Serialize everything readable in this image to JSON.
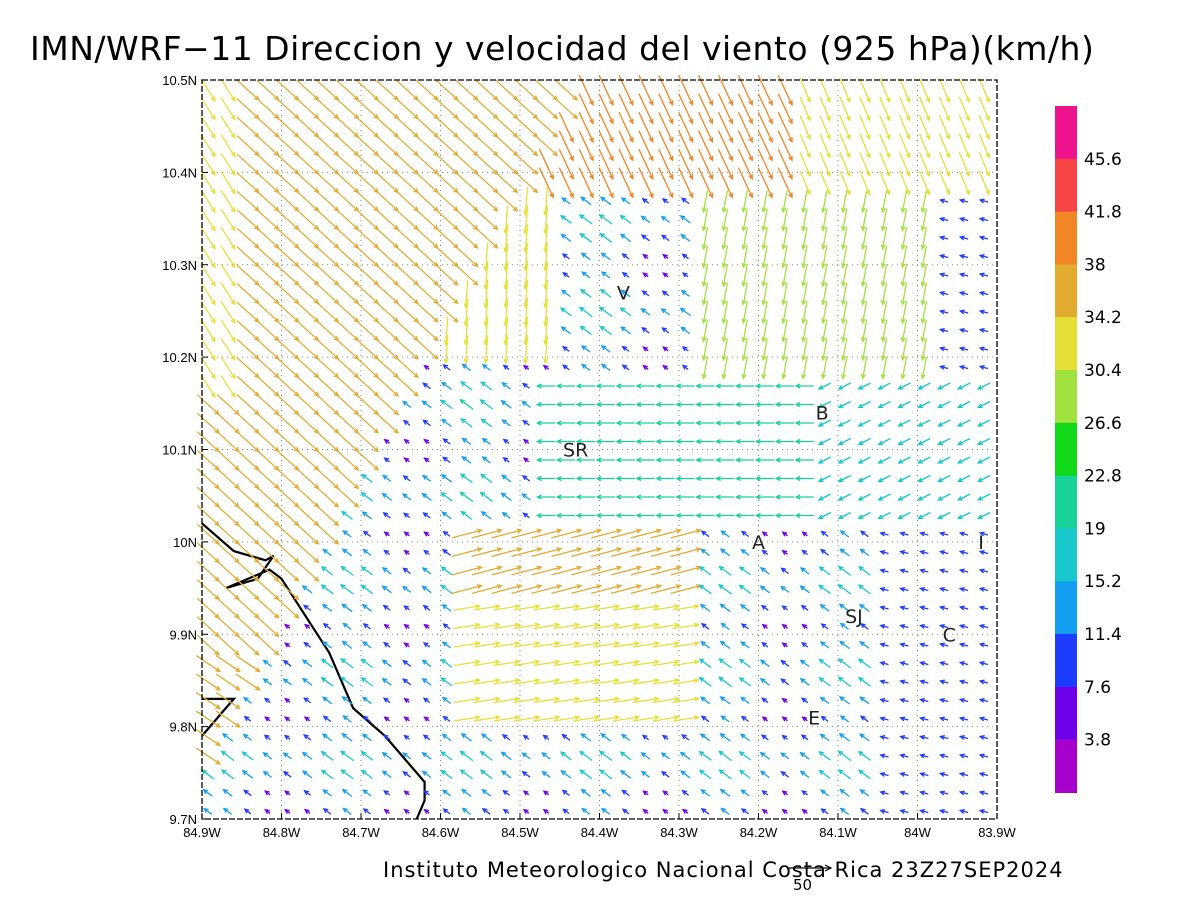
{
  "title": "IMN/WRF−11 Direccion y velocidad del viento (925 hPa)(km/h)",
  "credit": "Instituto Meteorologico Nacional Costa Rica 23Z27SEP2024",
  "reference_vector": {
    "value": "50"
  },
  "map": {
    "lon_range": [
      -84.9,
      -83.9
    ],
    "lat_range": [
      9.7,
      10.5
    ],
    "x_ticks": [
      "84.9W",
      "84.8W",
      "84.7W",
      "84.6W",
      "84.5W",
      "84.4W",
      "84.3W",
      "84.2W",
      "84.1W",
      "84W",
      "83.9W"
    ],
    "y_ticks": [
      "9.7N",
      "9.8N",
      "9.9N",
      "10N",
      "10.1N",
      "10.2N",
      "10.3N",
      "10.4N",
      "10.5N"
    ],
    "grid": true,
    "cities": [
      {
        "label": "V",
        "lon": -84.37,
        "lat": 10.27
      },
      {
        "label": "SR",
        "lon": -84.43,
        "lat": 10.1
      },
      {
        "label": "B",
        "lon": -84.12,
        "lat": 10.14
      },
      {
        "label": "A",
        "lon": -84.2,
        "lat": 10.0
      },
      {
        "label": "I",
        "lon": -83.92,
        "lat": 10.0
      },
      {
        "label": "SJ",
        "lon": -84.08,
        "lat": 9.92
      },
      {
        "label": "C",
        "lon": -83.96,
        "lat": 9.9
      },
      {
        "label": "E",
        "lon": -84.13,
        "lat": 9.81
      }
    ],
    "coastline": [
      [
        -84.9,
        10.02
      ],
      [
        -84.86,
        9.99
      ],
      [
        -84.82,
        9.98
      ],
      [
        -84.81,
        9.985
      ],
      [
        -84.83,
        9.96
      ],
      [
        -84.87,
        9.95
      ],
      [
        -84.815,
        9.97
      ],
      [
        -84.8,
        9.96
      ],
      [
        -84.77,
        9.92
      ],
      [
        -84.74,
        9.88
      ],
      [
        -84.71,
        9.82
      ],
      [
        -84.67,
        9.79
      ],
      [
        -84.62,
        9.74
      ],
      [
        -84.62,
        9.72
      ],
      [
        -84.63,
        9.7
      ]
    ],
    "coastline_sw": [
      [
        -84.9,
        9.83
      ],
      [
        -84.86,
        9.83
      ],
      [
        -84.9,
        9.79
      ]
    ]
  },
  "colorbar": {
    "labels": [
      "45.6",
      "41.8",
      "38",
      "34.2",
      "30.4",
      "26.6",
      "22.8",
      "19",
      "15.2",
      "11.4",
      "7.6",
      "3.8"
    ],
    "colors": [
      "#f0138e",
      "#f84444",
      "#f08626",
      "#e2ab30",
      "#e6e036",
      "#a1e23e",
      "#12d81a",
      "#17d39a",
      "#17c8cc",
      "#139ef2",
      "#1e3cff",
      "#6e00ea",
      "#a600cc"
    ]
  }
}
